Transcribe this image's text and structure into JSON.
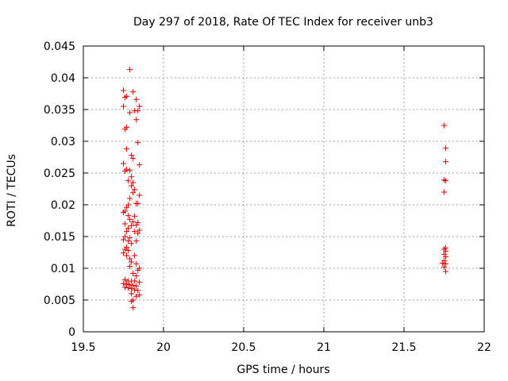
{
  "chart_data": {
    "type": "scatter",
    "title": "Day 297 of 2018, Rate Of TEC Index for receiver unb3",
    "xlabel": "GPS time / hours",
    "ylabel": "ROTI / TECUs",
    "xlim": [
      19.5,
      22
    ],
    "ylim": [
      0,
      0.045
    ],
    "xticks": [
      "19.5",
      "20",
      "20.5",
      "21",
      "21.5",
      "22"
    ],
    "yticks": [
      "0",
      "0.005",
      "0.01",
      "0.015",
      "0.02",
      "0.025",
      "0.03",
      "0.035",
      "0.04",
      "0.045"
    ],
    "grid": true,
    "marker": "+",
    "color": "#dd0000",
    "series": [
      {
        "name": "ROTI",
        "points": [
          [
            19.79,
            0.0413
          ],
          [
            19.75,
            0.038
          ],
          [
            19.81,
            0.0378
          ],
          [
            19.77,
            0.0371
          ],
          [
            19.76,
            0.0369
          ],
          [
            19.83,
            0.0366
          ],
          [
            19.75,
            0.0355
          ],
          [
            19.85,
            0.0355
          ],
          [
            19.82,
            0.0348
          ],
          [
            19.84,
            0.0348
          ],
          [
            19.79,
            0.0345
          ],
          [
            19.83,
            0.0334
          ],
          [
            19.77,
            0.0322
          ],
          [
            19.76,
            0.0319
          ],
          [
            19.84,
            0.0298
          ],
          [
            19.77,
            0.0288
          ],
          [
            19.8,
            0.0278
          ],
          [
            19.81,
            0.0273
          ],
          [
            19.75,
            0.0265
          ],
          [
            19.85,
            0.0263
          ],
          [
            19.77,
            0.0256
          ],
          [
            19.76,
            0.0253
          ],
          [
            19.79,
            0.0254
          ],
          [
            19.8,
            0.0244
          ],
          [
            19.78,
            0.0238
          ],
          [
            19.81,
            0.0235
          ],
          [
            19.8,
            0.023
          ],
          [
            19.82,
            0.0224
          ],
          [
            19.81,
            0.0219
          ],
          [
            19.85,
            0.0215
          ],
          [
            19.79,
            0.021
          ],
          [
            19.83,
            0.0202
          ],
          [
            19.84,
            0.0202
          ],
          [
            19.78,
            0.02
          ],
          [
            19.77,
            0.0196
          ],
          [
            19.76,
            0.019
          ],
          [
            19.75,
            0.0188
          ],
          [
            19.78,
            0.0183
          ],
          [
            19.82,
            0.0182
          ],
          [
            19.79,
            0.0177
          ],
          [
            19.81,
            0.0173
          ],
          [
            19.84,
            0.0172
          ],
          [
            19.76,
            0.017
          ],
          [
            19.8,
            0.0167
          ],
          [
            19.83,
            0.0168
          ],
          [
            19.78,
            0.0163
          ],
          [
            19.85,
            0.016
          ],
          [
            19.77,
            0.0158
          ],
          [
            19.82,
            0.0158
          ],
          [
            19.84,
            0.0155
          ],
          [
            19.76,
            0.015
          ],
          [
            19.79,
            0.0148
          ],
          [
            19.75,
            0.0145
          ],
          [
            19.78,
            0.0143
          ],
          [
            19.83,
            0.0143
          ],
          [
            19.8,
            0.0139
          ],
          [
            19.77,
            0.0133
          ],
          [
            19.76,
            0.013
          ],
          [
            19.78,
            0.0128
          ],
          [
            19.75,
            0.0124
          ],
          [
            19.77,
            0.012
          ],
          [
            19.82,
            0.012
          ],
          [
            19.79,
            0.0115
          ],
          [
            19.8,
            0.011
          ],
          [
            19.83,
            0.0107
          ],
          [
            19.79,
            0.0103
          ],
          [
            19.85,
            0.01
          ],
          [
            19.84,
            0.0097
          ],
          [
            19.81,
            0.0092
          ],
          [
            19.83,
            0.0088
          ],
          [
            19.76,
            0.0082
          ],
          [
            19.78,
            0.008
          ],
          [
            19.8,
            0.008
          ],
          [
            19.82,
            0.008
          ],
          [
            19.85,
            0.0078
          ],
          [
            19.75,
            0.0076
          ],
          [
            19.77,
            0.0075
          ],
          [
            19.79,
            0.0074
          ],
          [
            19.81,
            0.0073
          ],
          [
            19.83,
            0.0072
          ],
          [
            19.76,
            0.007
          ],
          [
            19.78,
            0.0069
          ],
          [
            19.8,
            0.0068
          ],
          [
            19.82,
            0.0066
          ],
          [
            19.84,
            0.0065
          ],
          [
            19.8,
            0.006
          ],
          [
            19.85,
            0.0058
          ],
          [
            19.83,
            0.0056
          ],
          [
            19.81,
            0.005
          ],
          [
            19.8,
            0.0048
          ],
          [
            19.81,
            0.0038
          ],
          [
            21.75,
            0.0325
          ],
          [
            21.76,
            0.0289
          ],
          [
            21.76,
            0.0268
          ],
          [
            21.75,
            0.0239
          ],
          [
            21.76,
            0.0238
          ],
          [
            21.75,
            0.022
          ],
          [
            21.76,
            0.0132
          ],
          [
            21.75,
            0.013
          ],
          [
            21.76,
            0.0127
          ],
          [
            21.75,
            0.0122
          ],
          [
            21.76,
            0.0118
          ],
          [
            21.75,
            0.0112
          ],
          [
            21.74,
            0.0108
          ],
          [
            21.76,
            0.0107
          ],
          [
            21.75,
            0.0102
          ],
          [
            21.76,
            0.0095
          ]
        ]
      }
    ]
  }
}
